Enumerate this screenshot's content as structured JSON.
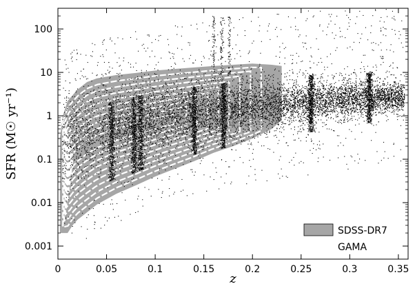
{
  "chart_data": {
    "type": "scatter",
    "xlabel": "z",
    "ylabel": "SFR (M☉ yr⁻¹)",
    "xlim": [
      0,
      0.36
    ],
    "ylim": [
      0.0005,
      300
    ],
    "y_scale": "log",
    "grid": false,
    "legend_position": "bottom-right",
    "x_ticks": [
      {
        "value": 0,
        "label": "0"
      },
      {
        "value": 0.05,
        "label": "0.05"
      },
      {
        "value": 0.1,
        "label": "0.1"
      },
      {
        "value": 0.15,
        "label": "0.15"
      },
      {
        "value": 0.2,
        "label": "0.2"
      },
      {
        "value": 0.25,
        "label": "0.25"
      },
      {
        "value": 0.3,
        "label": "0.3"
      },
      {
        "value": 0.35,
        "label": "0.35"
      }
    ],
    "y_ticks": [
      {
        "value": 0.001,
        "label": "0.001"
      },
      {
        "value": 0.01,
        "label": "0.01"
      },
      {
        "value": 0.1,
        "label": "0.1"
      },
      {
        "value": 1,
        "label": "1"
      },
      {
        "value": 10,
        "label": "10"
      },
      {
        "value": 100,
        "label": "100"
      }
    ],
    "series": [
      {
        "name": "SDSS-DR7",
        "kind": "density-contour-region",
        "color": "#a6a6a6",
        "upper_envelope": [
          [
            0.002,
            0.3
          ],
          [
            0.005,
            1.0
          ],
          [
            0.01,
            2.2
          ],
          [
            0.02,
            4.0
          ],
          [
            0.03,
            6.0
          ],
          [
            0.04,
            7.3
          ],
          [
            0.06,
            8.7
          ],
          [
            0.08,
            9.7
          ],
          [
            0.1,
            11
          ],
          [
            0.12,
            12
          ],
          [
            0.14,
            13
          ],
          [
            0.16,
            14
          ],
          [
            0.18,
            15
          ],
          [
            0.2,
            16
          ],
          [
            0.22,
            15
          ],
          [
            0.23,
            14
          ]
        ],
        "lower_envelope": [
          [
            0.002,
            0.002
          ],
          [
            0.01,
            0.002
          ],
          [
            0.015,
            0.003
          ],
          [
            0.02,
            0.004
          ],
          [
            0.03,
            0.006
          ],
          [
            0.04,
            0.009
          ],
          [
            0.06,
            0.016
          ],
          [
            0.08,
            0.025
          ],
          [
            0.1,
            0.04
          ],
          [
            0.12,
            0.06
          ],
          [
            0.14,
            0.09
          ],
          [
            0.16,
            0.14
          ],
          [
            0.18,
            0.2
          ],
          [
            0.2,
            0.3
          ],
          [
            0.22,
            0.5
          ],
          [
            0.23,
            0.8
          ]
        ]
      },
      {
        "name": "GAMA",
        "kind": "points",
        "color": "#000000",
        "ridge": [
          [
            0.02,
            0.3
          ],
          [
            0.05,
            0.5
          ],
          [
            0.1,
            0.9
          ],
          [
            0.15,
            1.3
          ],
          [
            0.2,
            1.7
          ],
          [
            0.25,
            2.1
          ],
          [
            0.3,
            2.5
          ],
          [
            0.35,
            2.8
          ]
        ],
        "lower_edge": [
          [
            0.02,
            0.007
          ],
          [
            0.05,
            0.03
          ],
          [
            0.1,
            0.07
          ],
          [
            0.15,
            0.15
          ],
          [
            0.2,
            0.25
          ],
          [
            0.25,
            0.4
          ],
          [
            0.3,
            0.6
          ],
          [
            0.35,
            0.9
          ]
        ],
        "overdensity_z": [
          0.055,
          0.078,
          0.085,
          0.14,
          0.17,
          0.26,
          0.32
        ]
      }
    ],
    "legend": [
      {
        "label": "SDSS-DR7",
        "swatch": "#a6a6a6"
      },
      {
        "label": "GAMA",
        "swatch": "none"
      }
    ]
  }
}
